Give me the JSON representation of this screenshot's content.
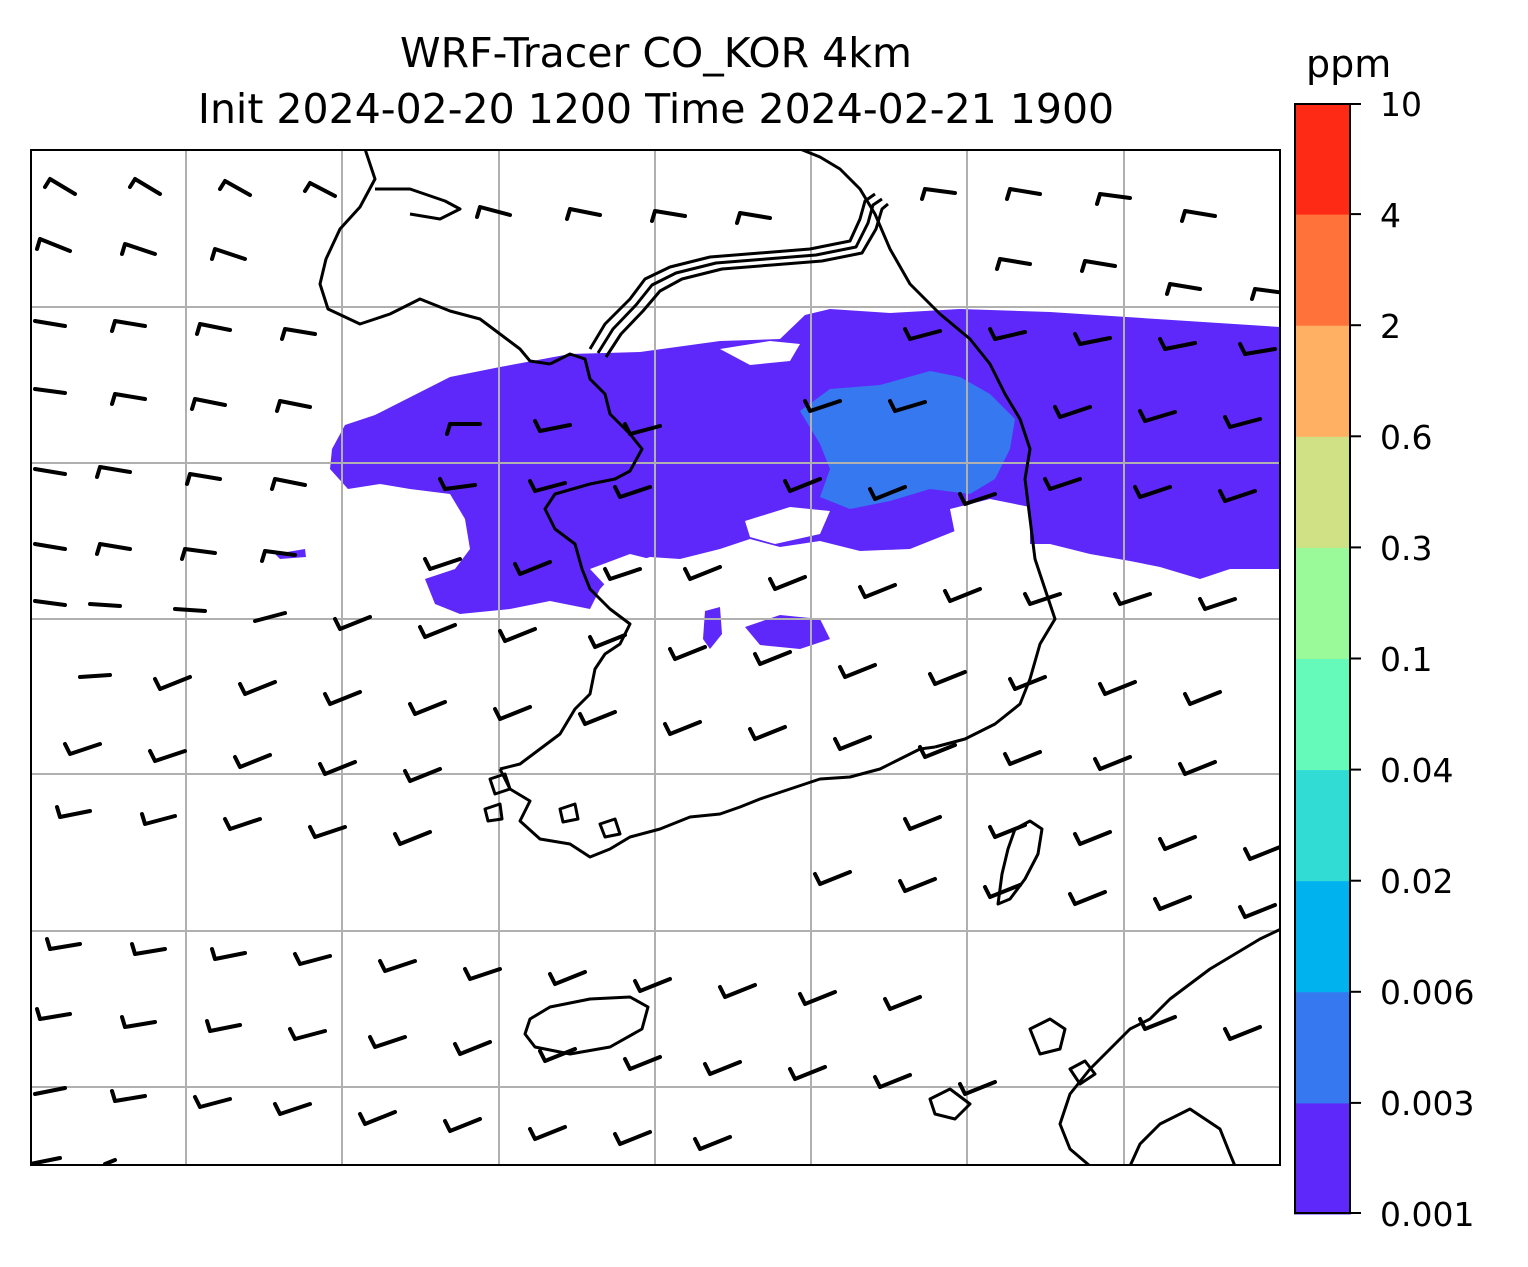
{
  "title": {
    "line1": "WRF-Tracer CO_KOR 4km",
    "line2": "Init 2024-02-20 1200 Time 2024-02-21 1900"
  },
  "colorbar": {
    "unit": "ppm",
    "levels": [
      "0.001",
      "0.003",
      "0.006",
      "0.02",
      "0.04",
      "0.1",
      "0.3",
      "0.6",
      "2",
      "4",
      "10"
    ],
    "colors": [
      "#5f28fa",
      "#3578f0",
      "#00b2ee",
      "#30dcd4",
      "#66faba",
      "#9afa9a",
      "#d0e084",
      "#ffb062",
      "#ff723a",
      "#ff2a16"
    ]
  },
  "map": {
    "tracer_fill_color": "#5f28fa",
    "tracer_core_color": "#3578f0",
    "grid_color": "#b0b0b0",
    "coast_color": "#000000",
    "wind_barbs": "westerly wind barbs on regular grid",
    "gridlines": true
  }
}
